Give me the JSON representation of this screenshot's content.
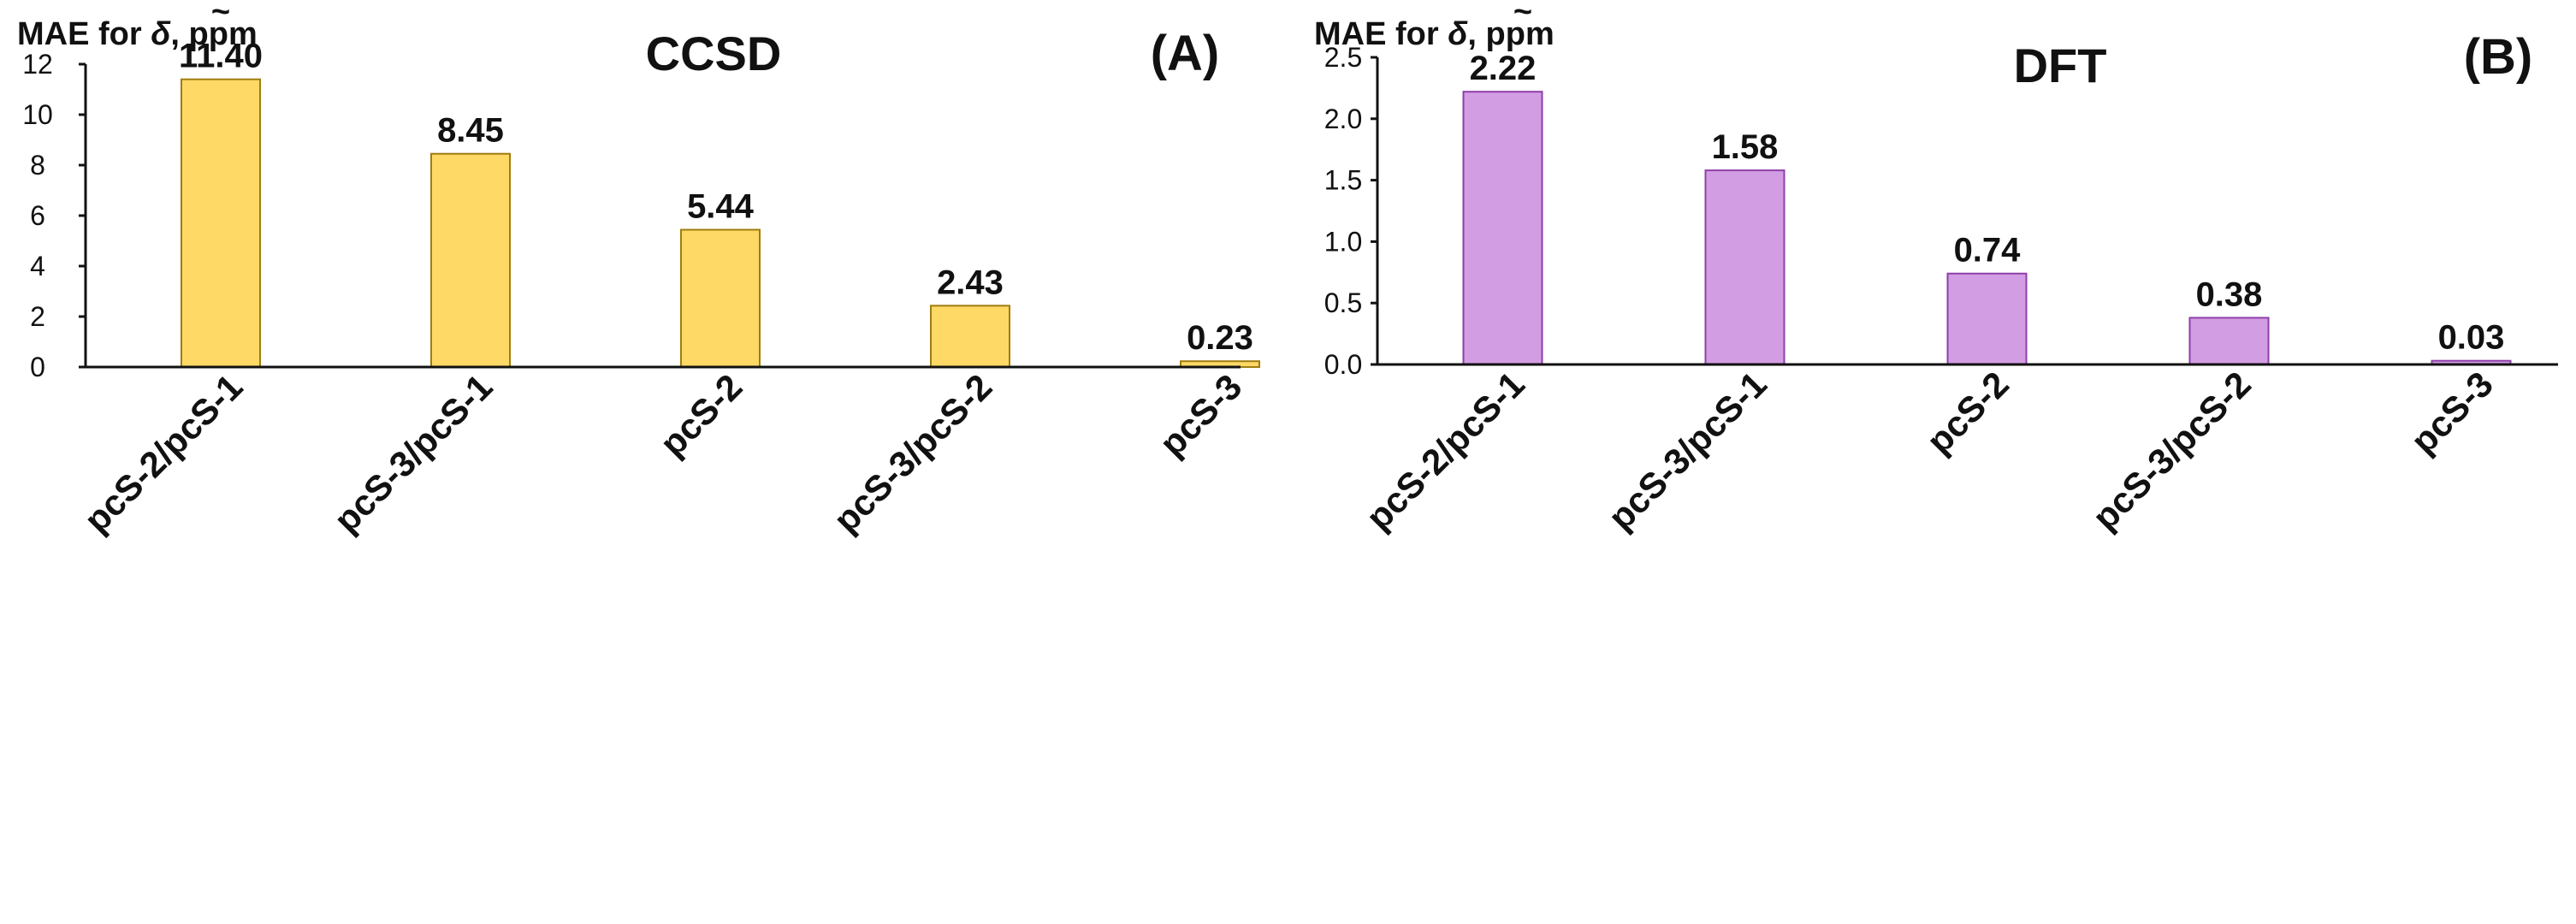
{
  "chart_data": [
    {
      "type": "bar",
      "panel_label": "(A)",
      "title": "CCSD",
      "ylabel": {
        "prefix": "MAE for ",
        "symbol": "δ",
        "accent": "~",
        "suffix": ", ppm"
      },
      "ylim": [
        0,
        12
      ],
      "yticks": [
        "0",
        "2",
        "4",
        "6",
        "8",
        "10",
        "12"
      ],
      "categories": [
        "pcS-2/pcS-1",
        "pcS-3/pcS-1",
        "pcS-2",
        "pcS-3/pcS-2",
        "pcS-3"
      ],
      "values": [
        11.4,
        8.45,
        5.44,
        2.43,
        0.23
      ],
      "data_labels": [
        "11.40",
        "8.45",
        "5.44",
        "2.43",
        "0.23"
      ],
      "bar_color": "#FFD966",
      "bar_edge_color": "#A07D10"
    },
    {
      "type": "bar",
      "panel_label": "(B)",
      "title": "DFT",
      "ylabel": {
        "prefix": "MAE for ",
        "symbol": "δ",
        "accent": "~",
        "suffix": ", ppm"
      },
      "ylim": [
        0,
        2.5
      ],
      "yticks": [
        "0.0",
        "0.5",
        "1.0",
        "1.5",
        "2.0",
        "2.5"
      ],
      "categories": [
        "pcS-2/pcS-1",
        "pcS-3/pcS-1",
        "pcS-2",
        "pcS-3/pcS-2",
        "pcS-3"
      ],
      "values": [
        2.22,
        1.58,
        0.74,
        0.38,
        0.03
      ],
      "data_labels": [
        "2.22",
        "1.58",
        "0.74",
        "0.38",
        "0.03"
      ],
      "bar_color": "#D39DE3",
      "bar_edge_color": "#8E3FA8"
    }
  ]
}
